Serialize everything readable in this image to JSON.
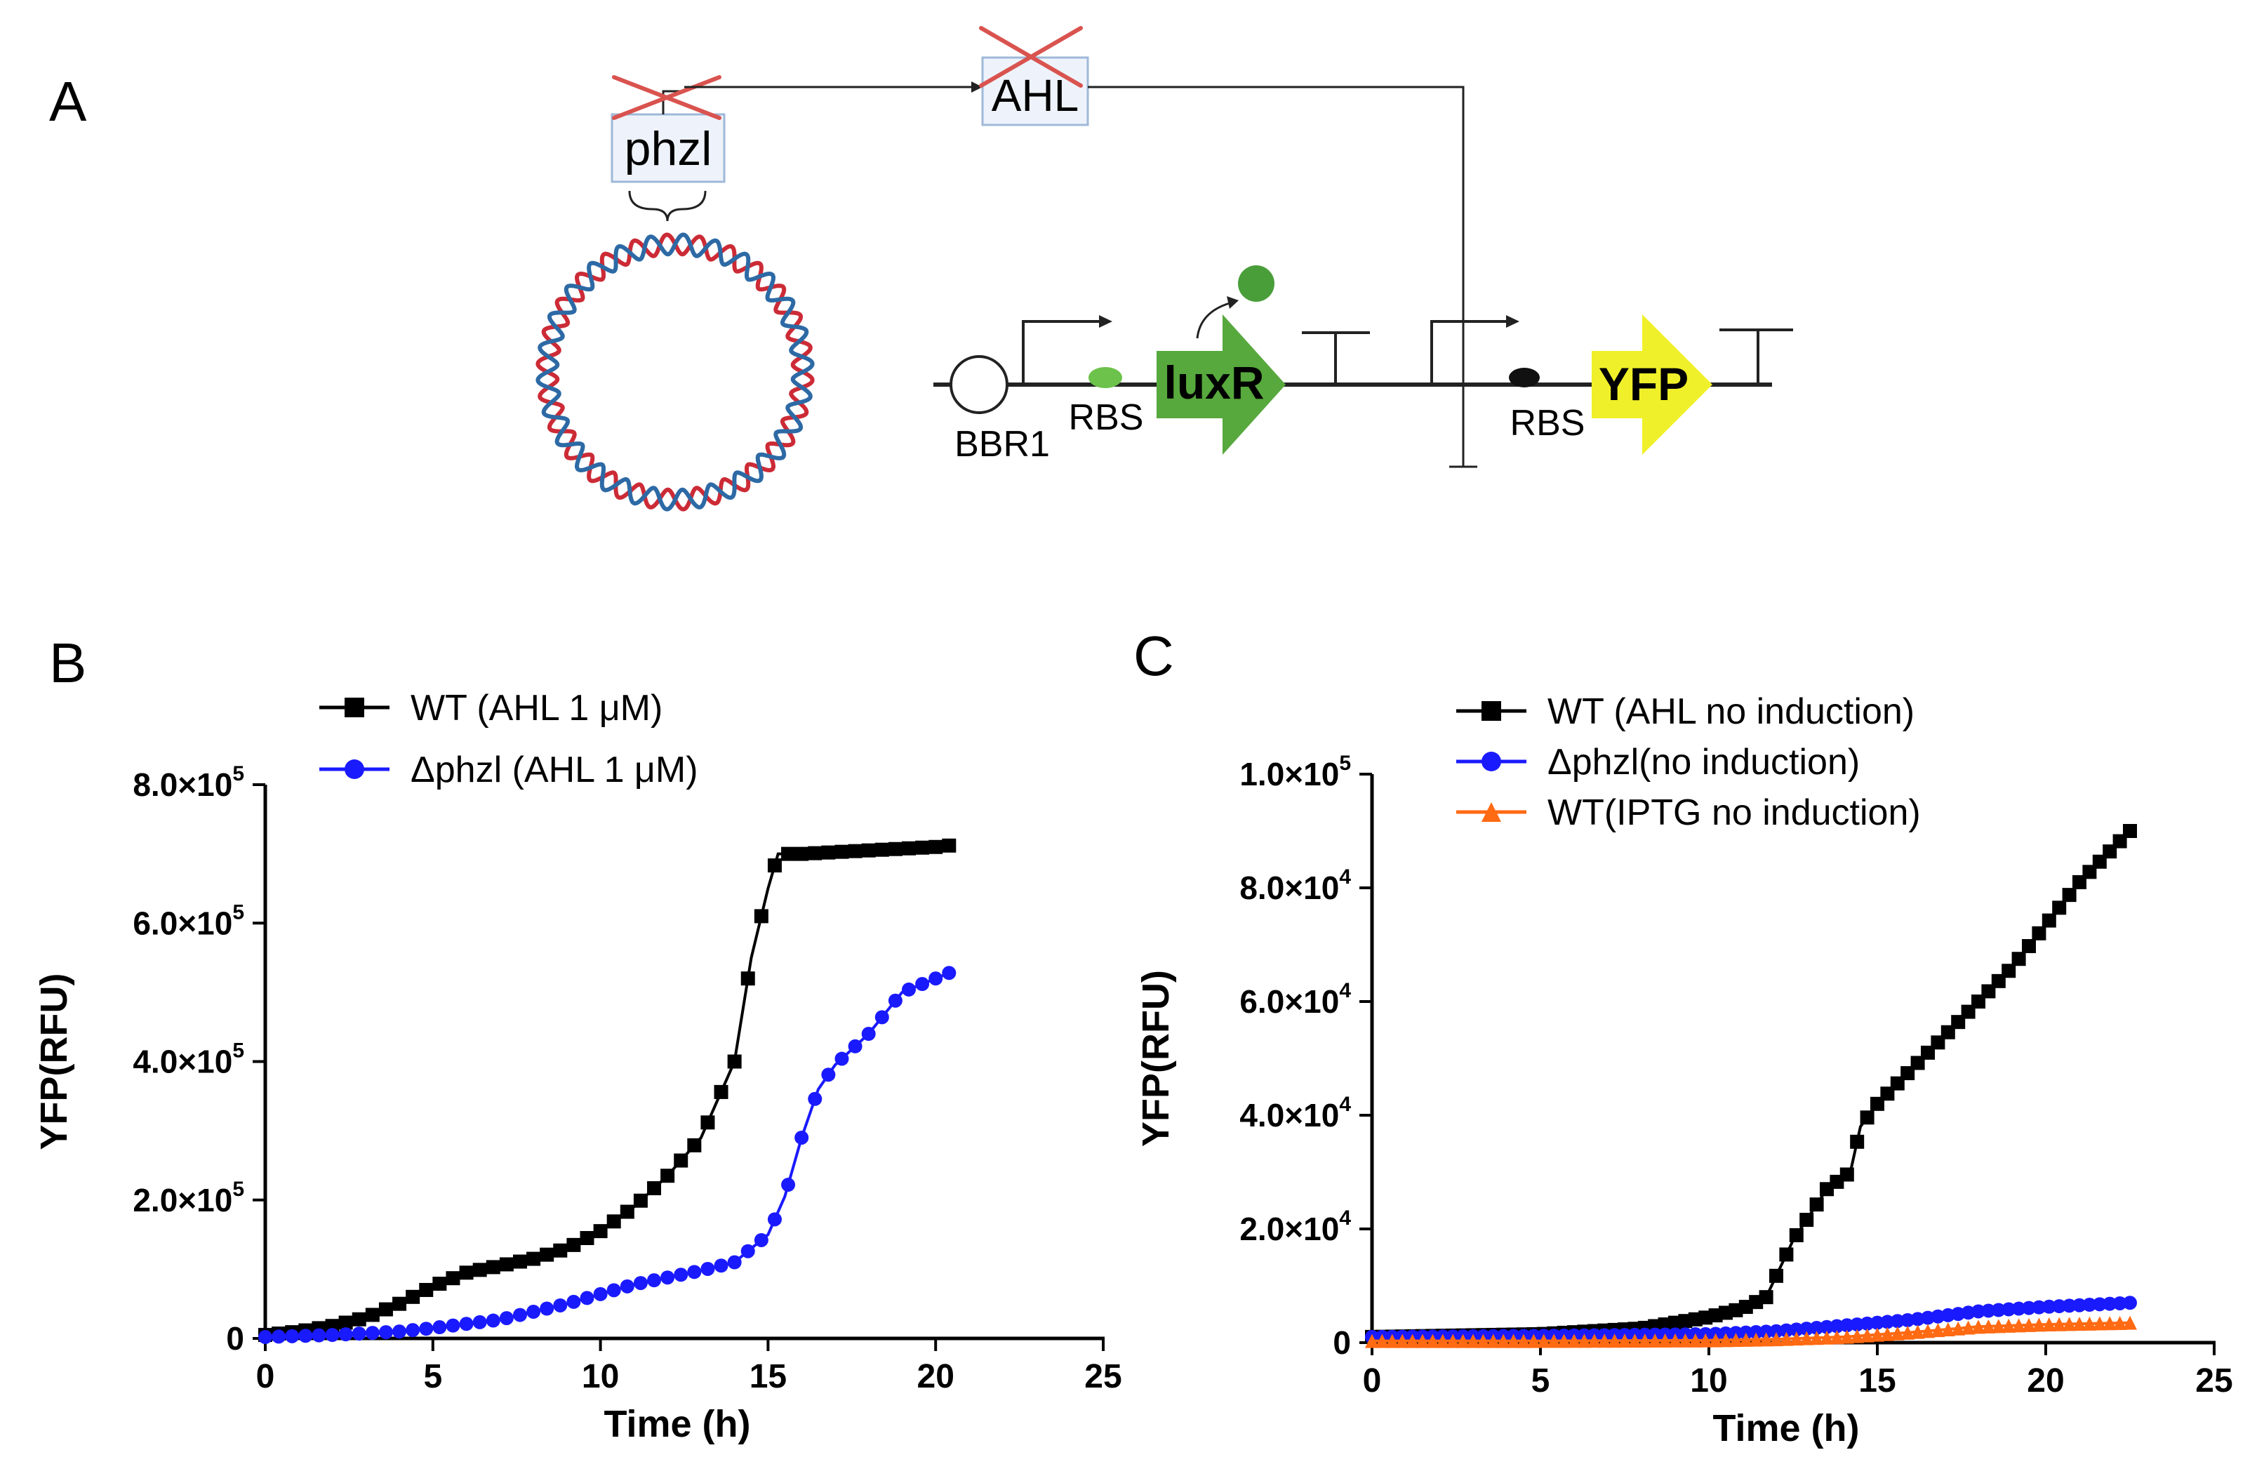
{
  "panel_a": {
    "label": "A",
    "gene": "phzl",
    "signal": "AHL",
    "origin": "BBR1",
    "rbs1": "RBS",
    "rbs2": "RBS",
    "regulator": "luxR",
    "reporter": "YFP",
    "colors": {
      "strand_red": "#cc2b36",
      "strand_blue": "#2d6aa5",
      "cross": "#d9534f",
      "box_fill": "#eef3fb",
      "box_stroke": "#9fb8d8",
      "luxr": "#57a83d",
      "rbs_green": "#6cc24a",
      "yfp": "#f0f02a",
      "dot": "#4a9e3a"
    }
  },
  "chart_data": [
    {
      "panel": "B",
      "type": "line",
      "xlabel": "Time (h)",
      "ylabel": "YFP(RFU)",
      "xlim": [
        0,
        25
      ],
      "ylim": [
        0,
        800000
      ],
      "xticks": [
        "0",
        "5",
        "10",
        "15",
        "20",
        "25"
      ],
      "yticks": [
        {
          "mant": "0",
          "exp": ""
        },
        {
          "mant": "2.0×10",
          "exp": "5"
        },
        {
          "mant": "4.0×10",
          "exp": "5"
        },
        {
          "mant": "6.0×10",
          "exp": "5"
        },
        {
          "mant": "8.0×10",
          "exp": "5"
        }
      ],
      "legend_position": "top-left",
      "series": [
        {
          "name": "WT (AHL 1 μM)",
          "marker": "square",
          "color": "#000000",
          "points": [
            [
              0,
              5000
            ],
            [
              1,
              10000
            ],
            [
              2,
              18000
            ],
            [
              3,
              30000
            ],
            [
              4,
              50000
            ],
            [
              5,
              75000
            ],
            [
              6,
              95000
            ],
            [
              7,
              105000
            ],
            [
              8,
              115000
            ],
            [
              9,
              130000
            ],
            [
              10,
              155000
            ],
            [
              11,
              190000
            ],
            [
              12,
              235000
            ],
            [
              13,
              290000
            ],
            [
              14,
              400000
            ],
            [
              14.5,
              550000
            ],
            [
              15,
              650000
            ],
            [
              15.3,
              700000
            ],
            [
              16,
              700000
            ],
            [
              18,
              705000
            ],
            [
              20,
              710000
            ],
            [
              20.4,
              712000
            ]
          ]
        },
        {
          "name": "Δphzl (AHL 1 μM)",
          "marker": "circle",
          "color": "#1a1aff",
          "points": [
            [
              0,
              2000
            ],
            [
              2,
              5000
            ],
            [
              4,
              10000
            ],
            [
              5,
              15000
            ],
            [
              7,
              27000
            ],
            [
              9,
              50000
            ],
            [
              11,
              78000
            ],
            [
              13,
              98000
            ],
            [
              14,
              110000
            ],
            [
              15,
              150000
            ],
            [
              15.5,
              205000
            ],
            [
              16,
              290000
            ],
            [
              16.5,
              360000
            ],
            [
              17,
              395000
            ],
            [
              18,
              440000
            ],
            [
              19,
              500000
            ],
            [
              20,
              520000
            ],
            [
              20.4,
              528000
            ]
          ]
        }
      ]
    },
    {
      "panel": "C",
      "type": "line",
      "xlabel": "Time (h)",
      "ylabel": "YFP(RFU)",
      "xlim": [
        0,
        25
      ],
      "ylim": [
        0,
        100000
      ],
      "xticks": [
        "0",
        "5",
        "10",
        "15",
        "20",
        "25"
      ],
      "yticks": [
        {
          "mant": "0",
          "exp": ""
        },
        {
          "mant": "2.0×10",
          "exp": "4"
        },
        {
          "mant": "4.0×10",
          "exp": "4"
        },
        {
          "mant": "6.0×10",
          "exp": "4"
        },
        {
          "mant": "8.0×10",
          "exp": "4"
        },
        {
          "mant": "1.0×10",
          "exp": "5"
        }
      ],
      "legend_position": "top-right",
      "series": [
        {
          "name": "WT (AHL no induction)",
          "marker": "square",
          "color": "#000000",
          "points": [
            [
              0,
              1000
            ],
            [
              5,
              1500
            ],
            [
              8,
              2500
            ],
            [
              10,
              4500
            ],
            [
              11,
              6000
            ],
            [
              11.7,
              8000
            ],
            [
              12.5,
              18000
            ],
            [
              13.5,
              27000
            ],
            [
              14.2,
              30000
            ],
            [
              14.5,
              38000
            ],
            [
              15,
              42000
            ],
            [
              17,
              54000
            ],
            [
              19,
              66000
            ],
            [
              21,
              81000
            ],
            [
              22.5,
              90000
            ]
          ]
        },
        {
          "name": "Δphzl(no induction)",
          "marker": "circle",
          "color": "#1a1aff",
          "points": [
            [
              0,
              1000
            ],
            [
              5,
              1200
            ],
            [
              10,
              1500
            ],
            [
              12,
              2000
            ],
            [
              14,
              3000
            ],
            [
              16,
              4000
            ],
            [
              18,
              5500
            ],
            [
              20,
              6300
            ],
            [
              22.5,
              7000
            ]
          ]
        },
        {
          "name": "WT(IPTG no induction)",
          "marker": "triangle",
          "color": "#ff6a13",
          "points": [
            [
              0,
              300
            ],
            [
              5,
              300
            ],
            [
              10,
              400
            ],
            [
              12,
              600
            ],
            [
              14,
              1000
            ],
            [
              16,
              1800
            ],
            [
              18,
              2800
            ],
            [
              20,
              3200
            ],
            [
              22.5,
              3500
            ]
          ]
        }
      ]
    }
  ]
}
